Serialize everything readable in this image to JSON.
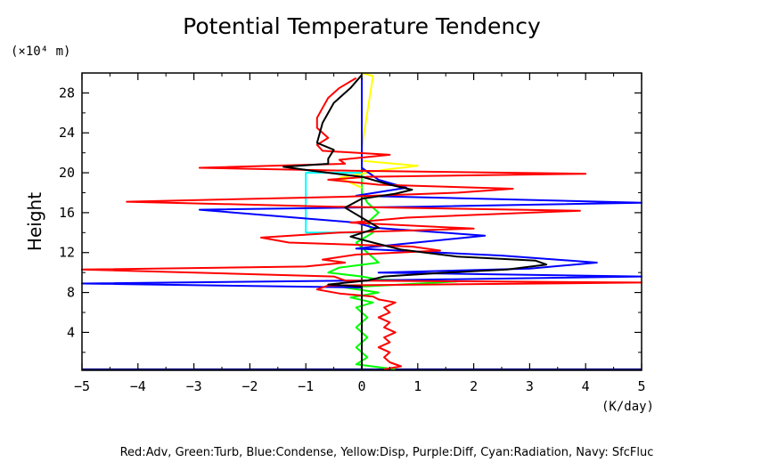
{
  "chart_data": {
    "type": "line",
    "title": "Potential Temperature Tendency",
    "xlabel": "(K/day)",
    "ylabel": "Height",
    "yunit": "(×10⁴ m)",
    "xlim": [
      -5,
      5
    ],
    "ylim": [
      0.2,
      30
    ],
    "xticks": [
      -5,
      -4,
      -3,
      -2,
      -1,
      0,
      1,
      2,
      3,
      4,
      5
    ],
    "yticks": [
      4,
      8,
      12,
      16,
      20,
      24,
      28
    ],
    "grid": false,
    "legend_note": "Red:Adv, Green:Turb, Blue:Condense, Yellow:Disp, Purple:Diff, Cyan:Radiation, Navy: SfcFluc",
    "series": [
      {
        "name": "Adv",
        "color": "#ff0000",
        "points": [
          [
            0.4,
            0.3
          ],
          [
            0.7,
            0.6
          ],
          [
            0.5,
            1.0
          ],
          [
            0.4,
            1.5
          ],
          [
            0.5,
            2.0
          ],
          [
            0.3,
            2.5
          ],
          [
            0.5,
            3.0
          ],
          [
            0.4,
            3.5
          ],
          [
            0.6,
            4.0
          ],
          [
            0.4,
            4.5
          ],
          [
            0.5,
            5.0
          ],
          [
            0.3,
            5.5
          ],
          [
            0.5,
            6.0
          ],
          [
            0.4,
            6.5
          ],
          [
            0.6,
            7.0
          ],
          [
            0.3,
            7.3
          ],
          [
            0.2,
            7.6
          ],
          [
            -0.4,
            7.9
          ],
          [
            -0.8,
            8.3
          ],
          [
            -0.6,
            8.7
          ],
          [
            5,
            9.0
          ],
          [
            -0.3,
            9.2
          ],
          [
            -0.5,
            9.6
          ],
          [
            -5,
            10.3
          ],
          [
            -1,
            10.6
          ],
          [
            -0.3,
            11.0
          ],
          [
            -0.7,
            11.3
          ],
          [
            -0.1,
            11.8
          ],
          [
            1.4,
            12.2
          ],
          [
            0.9,
            12.6
          ],
          [
            -1.3,
            13.0
          ],
          [
            -1.8,
            13.5
          ],
          [
            -0.4,
            14.0
          ],
          [
            2,
            14.4
          ],
          [
            -0.2,
            15.0
          ],
          [
            0.8,
            15.5
          ],
          [
            3.9,
            16.2
          ],
          [
            -0.5,
            16.6
          ],
          [
            -4.2,
            17.1
          ],
          [
            -0.3,
            17.6
          ],
          [
            1.7,
            18.0
          ],
          [
            2.7,
            18.4
          ],
          [
            0.3,
            18.8
          ],
          [
            -0.6,
            19.3
          ],
          [
            0.1,
            19.6
          ],
          [
            4.0,
            19.9
          ],
          [
            -0.2,
            20.2
          ],
          [
            -2.9,
            20.5
          ],
          [
            -0.3,
            20.9
          ],
          [
            -0.4,
            21.3
          ],
          [
            0.5,
            21.8
          ],
          [
            -0.7,
            22.2
          ],
          [
            -0.8,
            22.8
          ],
          [
            -0.6,
            23.5
          ],
          [
            -0.8,
            24.5
          ],
          [
            -0.8,
            25.5
          ],
          [
            -0.7,
            26.5
          ],
          [
            -0.6,
            27.5
          ],
          [
            -0.4,
            28.5
          ],
          [
            -0.1,
            29.5
          ]
        ]
      },
      {
        "name": "Turb",
        "color": "#00ff00",
        "points": [
          [
            0.6,
            0.3
          ],
          [
            -0.1,
            0.8
          ],
          [
            0.1,
            1.5
          ],
          [
            -0.1,
            2.5
          ],
          [
            0.1,
            3.5
          ],
          [
            -0.1,
            4.5
          ],
          [
            0.1,
            5.5
          ],
          [
            -0.1,
            6.5
          ],
          [
            0.2,
            7.0
          ],
          [
            -0.2,
            7.5
          ],
          [
            0.3,
            8.0
          ],
          [
            -0.3,
            8.5
          ],
          [
            1.7,
            9.1
          ],
          [
            0.3,
            9.3
          ],
          [
            0,
            9.6
          ],
          [
            -0.6,
            10.0
          ],
          [
            -0.4,
            10.5
          ],
          [
            0.3,
            11.0
          ],
          [
            0.1,
            12.0
          ],
          [
            -0.1,
            13.0
          ],
          [
            0.2,
            14.0
          ],
          [
            0.1,
            15.0
          ],
          [
            0.3,
            16.0
          ],
          [
            0.1,
            17.0
          ],
          [
            0,
            18.0
          ],
          [
            0,
            20.0
          ]
        ]
      },
      {
        "name": "Condense",
        "color": "#0000ff",
        "points": [
          [
            0,
            0.3
          ],
          [
            0,
            1.5
          ],
          [
            0,
            8.5
          ],
          [
            -5,
            8.9
          ],
          [
            0.1,
            9.2
          ],
          [
            5,
            9.6
          ],
          [
            0.3,
            10.0
          ],
          [
            3,
            10.4
          ],
          [
            4.2,
            11.0
          ],
          [
            2.5,
            11.7
          ],
          [
            -0.1,
            12.4
          ],
          [
            2.2,
            13.7
          ],
          [
            0.2,
            14.5
          ],
          [
            -0.1,
            15.0
          ],
          [
            -2.9,
            16.3
          ],
          [
            1,
            16.6
          ],
          [
            5,
            17.0
          ],
          [
            -0.1,
            17.7
          ],
          [
            0.8,
            18.5
          ],
          [
            0.3,
            19.3
          ],
          [
            0,
            20.5
          ],
          [
            0,
            29.5
          ]
        ]
      },
      {
        "name": "Disp",
        "color": "#ffff00",
        "points": [
          [
            0,
            18.5
          ],
          [
            -0.4,
            19.5
          ],
          [
            0.4,
            20.3
          ],
          [
            1,
            20.7
          ],
          [
            0,
            21.2
          ],
          [
            0,
            22.5
          ],
          [
            0.2,
            29.7
          ],
          [
            0,
            30
          ]
        ]
      },
      {
        "name": "Radiation",
        "color": "#00ffff",
        "points": [
          [
            0,
            14.0
          ],
          [
            -1,
            14.0
          ],
          [
            -1,
            20.0
          ],
          [
            0,
            20.0
          ]
        ]
      },
      {
        "name": "SfcFluc",
        "color": "#000080",
        "points": [
          [
            -5,
            0.3
          ],
          [
            5,
            0.3
          ]
        ]
      },
      {
        "name": "",
        "color": "#000000",
        "points": [
          [
            0,
            0.3
          ],
          [
            0,
            8.6
          ],
          [
            -0.6,
            8.8
          ],
          [
            0.1,
            9.2
          ],
          [
            0.4,
            9.6
          ],
          [
            1.5,
            10.0
          ],
          [
            2.6,
            10.3
          ],
          [
            3.3,
            10.8
          ],
          [
            3.1,
            11.2
          ],
          [
            1.7,
            11.6
          ],
          [
            0.7,
            12.3
          ],
          [
            0.2,
            13.0
          ],
          [
            -0.2,
            13.6
          ],
          [
            0.3,
            14.5
          ],
          [
            0,
            15.5
          ],
          [
            -0.3,
            16.5
          ],
          [
            0,
            17.4
          ],
          [
            0.6,
            17.9
          ],
          [
            0.9,
            18.3
          ],
          [
            0.5,
            18.8
          ],
          [
            0,
            19.6
          ],
          [
            -0.9,
            20.2
          ],
          [
            -1.4,
            20.6
          ],
          [
            -0.6,
            20.9
          ],
          [
            -0.6,
            21.4
          ],
          [
            -0.5,
            22.3
          ],
          [
            -0.8,
            23.0
          ],
          [
            -0.7,
            25.0
          ],
          [
            -0.5,
            27.0
          ],
          [
            -0.2,
            28.5
          ],
          [
            0,
            29.8
          ]
        ]
      }
    ]
  }
}
